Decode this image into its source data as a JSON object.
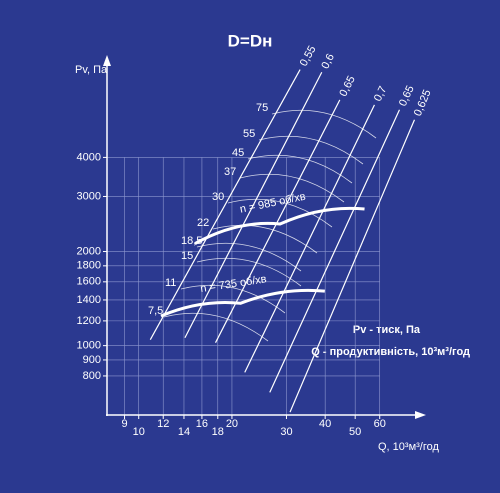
{
  "chart_data": {
    "type": "line",
    "title": "D=Dн",
    "ylabel": "Pv, Па",
    "xlabel": "Q, 10³м³/год",
    "xlog": true,
    "ylog": true,
    "grid": true,
    "xlim": [
      7.9,
      78
    ],
    "ylim": [
      600,
      7900
    ],
    "xticks": [
      9,
      10,
      12,
      14,
      16,
      18,
      20,
      30,
      40,
      50,
      60
    ],
    "yticks": [
      800,
      900,
      1000,
      1200,
      1400,
      1600,
      1800,
      2000,
      3000,
      4000
    ],
    "series": [
      {
        "name": "n = 985 об/хв",
        "color": "#ffffff",
        "x": [
          15.2,
          28.6,
          53.6
        ],
        "y": [
          2120,
          2450,
          2735
        ]
      },
      {
        "name": "n = 735 об/хв",
        "color": "#ffffff",
        "x": [
          11.8,
          21.3,
          39.9
        ],
        "y": [
          1244,
          1366,
          1494
        ]
      }
    ],
    "efficiency_lines": [
      {
        "label": "0,55",
        "x": [
          10.9,
          33.2
        ],
        "y": [
          1045,
          7640
        ]
      },
      {
        "label": "0,6",
        "x": [
          14.1,
          39.0
        ],
        "y": [
          1060,
          7490
        ]
      },
      {
        "label": "0,65",
        "x": [
          17.7,
          44.6
        ],
        "y": [
          1022,
          6110
        ]
      },
      {
        "label": "0,7",
        "x": [
          22.0,
          57.7
        ],
        "y": [
          821,
          5890
        ]
      },
      {
        "label": "0,65",
        "x": [
          26.5,
          69.5
        ],
        "y": [
          709,
          5680
        ]
      },
      {
        "label": "0,625",
        "x": [
          30.8,
          77.7
        ],
        "y": [
          613,
          5280
        ]
      }
    ],
    "power_labels": [
      "7,5",
      "11",
      "15",
      "18,5",
      "22",
      "30",
      "37",
      "45",
      "55",
      "75"
    ],
    "legend_lines": [
      "Pv - тиск, Па",
      "Q - продуктивність, 10³м³/год"
    ]
  }
}
